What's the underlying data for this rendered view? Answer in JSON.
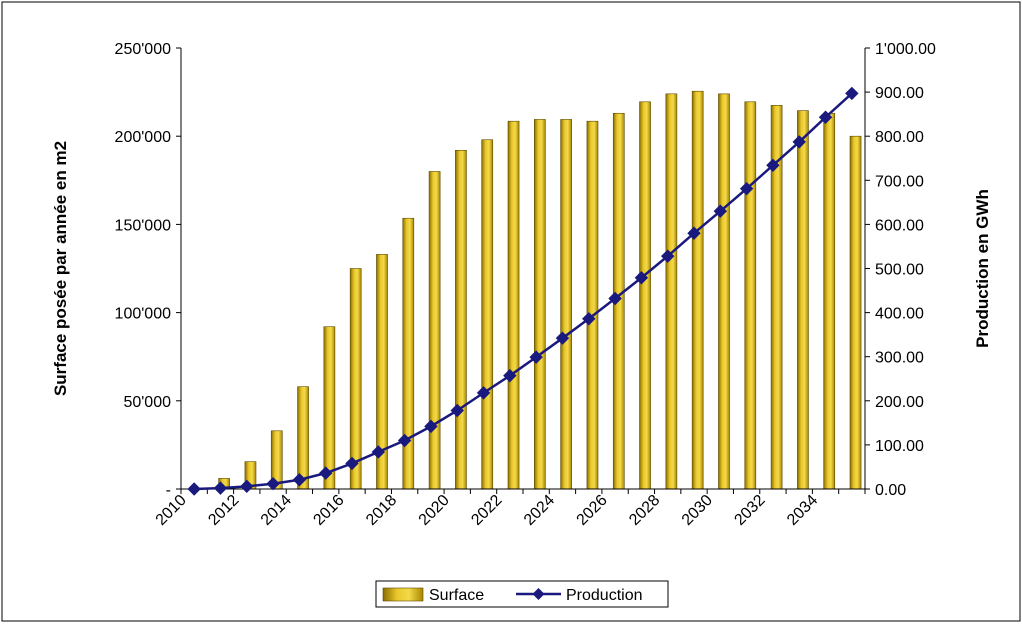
{
  "chart_data": {
    "type": "bar",
    "x": [
      2010,
      2011,
      2012,
      2013,
      2014,
      2015,
      2016,
      2017,
      2018,
      2019,
      2020,
      2021,
      2022,
      2023,
      2024,
      2025,
      2026,
      2027,
      2028,
      2029,
      2030,
      2031,
      2032,
      2033,
      2034,
      2035
    ],
    "x_tick_labels": [
      "2010",
      "2012",
      "2014",
      "2016",
      "2018",
      "2020",
      "2022",
      "2024",
      "2026",
      "2028",
      "2030",
      "2032",
      "2034"
    ],
    "series": [
      {
        "name": "Surface",
        "type": "bar",
        "axis": "left",
        "color": "#C9A208",
        "values": [
          0,
          6000,
          15500,
          33000,
          58000,
          92000,
          125000,
          133000,
          153500,
          180000,
          192000,
          198000,
          208500,
          209500,
          209500,
          208500,
          213000,
          219500,
          224000,
          225500,
          224000,
          219500,
          217500,
          214500,
          213000,
          200000
        ]
      },
      {
        "name": "Production",
        "type": "line",
        "axis": "right",
        "color": "#1A1A7E",
        "marker": "diamond",
        "values": [
          0,
          2,
          6,
          12,
          21,
          36,
          58,
          84,
          110,
          142,
          178,
          218,
          257,
          299,
          342,
          386,
          432,
          479,
          528,
          580,
          630,
          681,
          734,
          787,
          843,
          897
        ]
      }
    ],
    "ylabel_left": "Surface posée par année en m2",
    "ylabel_right": "Production en GWh",
    "ylim_left": [
      0,
      250000
    ],
    "ylim_right": [
      0,
      1000
    ],
    "left_ticks": [
      {
        "value": 0,
        "label": "-"
      },
      {
        "value": 50000,
        "label": "50'000"
      },
      {
        "value": 100000,
        "label": "100'000"
      },
      {
        "value": 150000,
        "label": "150'000"
      },
      {
        "value": 200000,
        "label": "200'000"
      },
      {
        "value": 250000,
        "label": "250'000"
      }
    ],
    "right_ticks": [
      {
        "value": 0,
        "label": "0.00"
      },
      {
        "value": 100,
        "label": "100.00"
      },
      {
        "value": 200,
        "label": "200.00"
      },
      {
        "value": 300,
        "label": "300.00"
      },
      {
        "value": 400,
        "label": "400.00"
      },
      {
        "value": 500,
        "label": "500.00"
      },
      {
        "value": 600,
        "label": "600.00"
      },
      {
        "value": 700,
        "label": "700.00"
      },
      {
        "value": 800,
        "label": "800.00"
      },
      {
        "value": 900,
        "label": "900.00"
      },
      {
        "value": 1000,
        "label": "1'000.00"
      }
    ],
    "grid": false,
    "legend": "bottom"
  }
}
